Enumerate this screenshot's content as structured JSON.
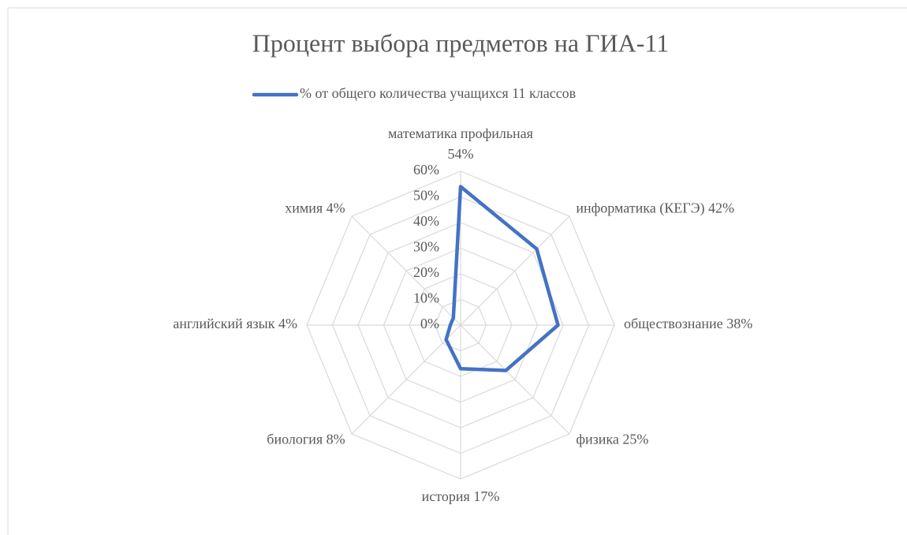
{
  "chart_data": {
    "type": "radar",
    "title": "Процент выбора предметов на ГИА-11",
    "categories": [
      "математика профильная",
      "информатика (КЕГЭ)",
      "обществознание",
      "физика",
      "история",
      "биология",
      "английский язык",
      "химия"
    ],
    "series": [
      {
        "name": "% от общего количества учащихся 11 классов",
        "color": "#4472c4",
        "values": [
          54,
          42,
          38,
          25,
          17,
          8,
          4,
          4
        ],
        "value_labels": [
          "54%",
          "42%",
          "38%",
          "25%",
          "17%",
          "8%",
          "4%",
          "4%"
        ]
      }
    ],
    "ylim": [
      0,
      60
    ],
    "yticks": [
      {
        "value": 0,
        "label": "0%"
      },
      {
        "value": 10,
        "label": "10%"
      },
      {
        "value": 20,
        "label": "20%"
      },
      {
        "value": 30,
        "label": "30%"
      },
      {
        "value": 40,
        "label": "40%"
      },
      {
        "value": 50,
        "label": "50%"
      },
      {
        "value": 60,
        "label": "60%"
      }
    ],
    "grid": true,
    "legend": "top"
  }
}
